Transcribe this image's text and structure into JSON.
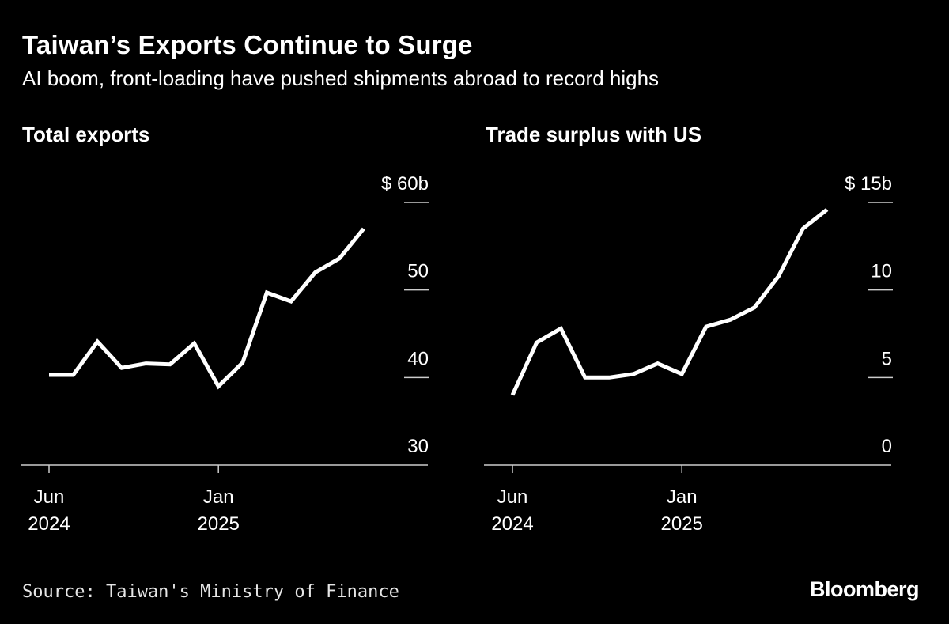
{
  "header": {
    "title": "Taiwan’s Exports Continue to Surge",
    "subtitle": "AI boom, front-loading have pushed shipments abroad to record highs"
  },
  "footer": {
    "source": "Source: Taiwan's Ministry of Finance",
    "brand": "Bloomberg"
  },
  "colors": {
    "background": "#000000",
    "line": "#ffffff",
    "axis": "#cccccc"
  },
  "chart_data": [
    {
      "type": "line",
      "title": "Total exports",
      "xlabel": "",
      "ylabel": "",
      "x": [
        "2024-06",
        "2024-07",
        "2024-08",
        "2024-09",
        "2024-10",
        "2024-11",
        "2024-12",
        "2025-01",
        "2025-02",
        "2025-03",
        "2025-04",
        "2025-05",
        "2025-06",
        "2025-07"
      ],
      "series": [
        {
          "values": [
            40.3,
            40.3,
            44.1,
            41.1,
            41.6,
            41.5,
            43.9,
            39.0,
            41.7,
            49.7,
            48.7,
            52.0,
            53.6,
            57.0
          ]
        }
      ],
      "ylim": [
        30,
        60
      ],
      "yticks": [
        {
          "value": 60,
          "label": "$ 60b"
        },
        {
          "value": 50,
          "label": "50"
        },
        {
          "value": 40,
          "label": "40"
        },
        {
          "value": 30,
          "label": "30"
        }
      ],
      "xticks": [
        {
          "x": "2024-06",
          "label": [
            "Jun",
            "2024"
          ]
        },
        {
          "x": "2025-01",
          "label": [
            "Jan",
            "2025"
          ]
        }
      ],
      "grid": false
    },
    {
      "type": "line",
      "title": "Trade surplus with US",
      "xlabel": "",
      "ylabel": "",
      "x": [
        "2024-06",
        "2024-07",
        "2024-08",
        "2024-09",
        "2024-10",
        "2024-11",
        "2024-12",
        "2025-01",
        "2025-02",
        "2025-03",
        "2025-04",
        "2025-05",
        "2025-06",
        "2025-07"
      ],
      "series": [
        {
          "values": [
            4.0,
            7.0,
            7.8,
            5.0,
            5.0,
            5.2,
            5.8,
            5.2,
            7.9,
            8.3,
            9.0,
            10.8,
            13.5,
            14.6
          ]
        }
      ],
      "ylim": [
        0,
        15
      ],
      "yticks": [
        {
          "value": 15,
          "label": "$ 15b"
        },
        {
          "value": 10,
          "label": "10"
        },
        {
          "value": 5,
          "label": "5"
        },
        {
          "value": 0,
          "label": "0"
        }
      ],
      "xticks": [
        {
          "x": "2024-06",
          "label": [
            "Jun",
            "2024"
          ]
        },
        {
          "x": "2025-01",
          "label": [
            "Jan",
            "2025"
          ]
        }
      ],
      "grid": false
    }
  ]
}
